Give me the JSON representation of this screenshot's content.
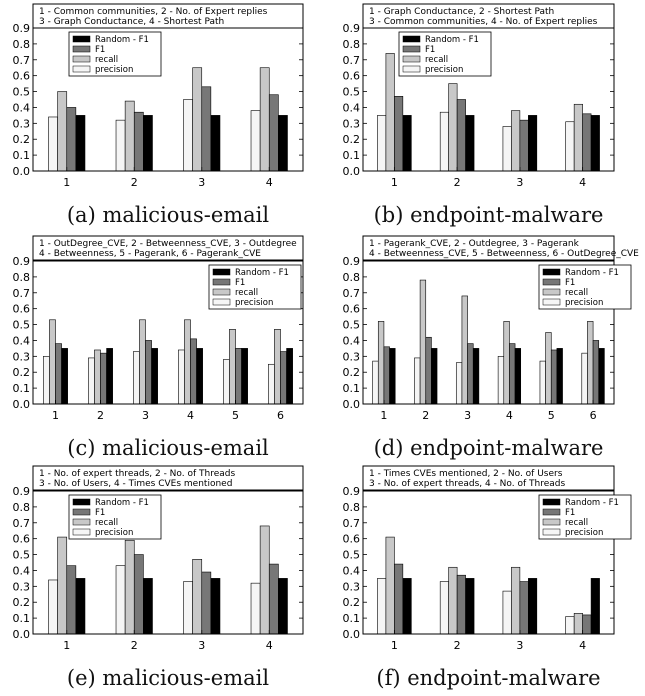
{
  "legend_labels": [
    "Random - F1",
    "F1",
    "recall",
    "precision"
  ],
  "colors": {
    "precision": "#f5f5f5",
    "recall": "#c8c8c8",
    "F1": "#777777",
    "random": "#000000"
  },
  "chart_data": [
    {
      "type": "bar",
      "caption": "(a) malicious-email",
      "annotation": [
        "1 - Common communities, 2 - No. of Expert replies",
        "3 - Graph Conductance, 4 - Shortest Path"
      ],
      "categories": [
        "1",
        "2",
        "3",
        "4"
      ],
      "ylim": [
        0,
        0.9
      ],
      "yticks": [
        "0.0",
        "0.1",
        "0.2",
        "0.3",
        "0.4",
        "0.5",
        "0.6",
        "0.7",
        "0.8",
        "0.9"
      ],
      "series": [
        {
          "name": "precision",
          "values": [
            0.34,
            0.32,
            0.45,
            0.38
          ]
        },
        {
          "name": "recall",
          "values": [
            0.5,
            0.44,
            0.65,
            0.65
          ]
        },
        {
          "name": "F1",
          "values": [
            0.4,
            0.37,
            0.53,
            0.48
          ]
        },
        {
          "name": "Random - F1",
          "values": [
            0.35,
            0.35,
            0.35,
            0.35
          ]
        }
      ]
    },
    {
      "type": "bar",
      "caption": "(b) endpoint-malware",
      "annotation": [
        "1 - Graph Conductance, 2 - Shortest Path",
        "3 - Common communities, 4 - No. of Expert replies"
      ],
      "categories": [
        "1",
        "2",
        "3",
        "4"
      ],
      "ylim": [
        0,
        0.9
      ],
      "yticks": [
        "0.0",
        "0.1",
        "0.2",
        "0.3",
        "0.4",
        "0.5",
        "0.6",
        "0.7",
        "0.8",
        "0.9"
      ],
      "series": [
        {
          "name": "precision",
          "values": [
            0.35,
            0.37,
            0.28,
            0.31
          ]
        },
        {
          "name": "recall",
          "values": [
            0.74,
            0.55,
            0.38,
            0.42
          ]
        },
        {
          "name": "F1",
          "values": [
            0.47,
            0.45,
            0.32,
            0.36
          ]
        },
        {
          "name": "Random - F1",
          "values": [
            0.35,
            0.35,
            0.35,
            0.35
          ]
        }
      ]
    },
    {
      "type": "bar",
      "caption": "(c) malicious-email",
      "annotation": [
        "1 - OutDegree_CVE, 2 - Betweenness_CVE, 3 - Outdegree",
        "4 - Betweenness, 5 - Pagerank, 6 - Pagerank_CVE"
      ],
      "categories": [
        "1",
        "2",
        "3",
        "4",
        "5",
        "6"
      ],
      "ylim": [
        0,
        0.9
      ],
      "yticks": [
        "0.0",
        "0.1",
        "0.2",
        "0.3",
        "0.4",
        "0.5",
        "0.6",
        "0.7",
        "0.8",
        "0.9"
      ],
      "series": [
        {
          "name": "precision",
          "values": [
            0.3,
            0.29,
            0.33,
            0.34,
            0.28,
            0.25
          ]
        },
        {
          "name": "recall",
          "values": [
            0.53,
            0.34,
            0.53,
            0.53,
            0.47,
            0.47
          ]
        },
        {
          "name": "F1",
          "values": [
            0.38,
            0.32,
            0.4,
            0.41,
            0.35,
            0.33
          ]
        },
        {
          "name": "Random - F1",
          "values": [
            0.35,
            0.35,
            0.35,
            0.35,
            0.35,
            0.35
          ]
        }
      ]
    },
    {
      "type": "bar",
      "caption": "(d) endpoint-malware",
      "annotation": [
        "1 - Pagerank_CVE, 2 - Outdegree, 3 - Pagerank",
        "4 - Betweenness_CVE, 5 - Betweenness, 6 - OutDegree_CVE"
      ],
      "categories": [
        "1",
        "2",
        "3",
        "4",
        "5",
        "6"
      ],
      "ylim": [
        0,
        0.9
      ],
      "yticks": [
        "0.0",
        "0.1",
        "0.2",
        "0.3",
        "0.4",
        "0.5",
        "0.6",
        "0.7",
        "0.8",
        "0.9"
      ],
      "series": [
        {
          "name": "precision",
          "values": [
            0.27,
            0.29,
            0.26,
            0.3,
            0.27,
            0.32
          ]
        },
        {
          "name": "recall",
          "values": [
            0.52,
            0.78,
            0.68,
            0.52,
            0.45,
            0.52
          ]
        },
        {
          "name": "F1",
          "values": [
            0.36,
            0.42,
            0.38,
            0.38,
            0.34,
            0.4
          ]
        },
        {
          "name": "Random - F1",
          "values": [
            0.35,
            0.35,
            0.35,
            0.35,
            0.35,
            0.35
          ]
        }
      ]
    },
    {
      "type": "bar",
      "caption": "(e) malicious-email",
      "annotation": [
        "1 - No. of expert threads, 2 - No. of Threads",
        "3 - No. of Users, 4 - Times CVEs mentioned"
      ],
      "categories": [
        "1",
        "2",
        "3",
        "4"
      ],
      "ylim": [
        0,
        0.9
      ],
      "yticks": [
        "0.0",
        "0.1",
        "0.2",
        "0.3",
        "0.4",
        "0.5",
        "0.6",
        "0.7",
        "0.8",
        "0.9"
      ],
      "series": [
        {
          "name": "precision",
          "values": [
            0.34,
            0.43,
            0.33,
            0.32
          ]
        },
        {
          "name": "recall",
          "values": [
            0.61,
            0.59,
            0.47,
            0.68
          ]
        },
        {
          "name": "F1",
          "values": [
            0.43,
            0.5,
            0.39,
            0.44
          ]
        },
        {
          "name": "Random - F1",
          "values": [
            0.35,
            0.35,
            0.35,
            0.35
          ]
        }
      ]
    },
    {
      "type": "bar",
      "caption": "(f) endpoint-malware",
      "annotation": [
        "1 - Times CVEs mentioned, 2 - No. of Users",
        "3 - No. of expert threads, 4 - No. of Threads"
      ],
      "categories": [
        "1",
        "2",
        "3",
        "4"
      ],
      "ylim": [
        0,
        0.9
      ],
      "yticks": [
        "0.0",
        "0.1",
        "0.2",
        "0.3",
        "0.4",
        "0.5",
        "0.6",
        "0.7",
        "0.8",
        "0.9"
      ],
      "series": [
        {
          "name": "precision",
          "values": [
            0.35,
            0.33,
            0.27,
            0.11
          ]
        },
        {
          "name": "recall",
          "values": [
            0.61,
            0.42,
            0.42,
            0.13
          ]
        },
        {
          "name": "F1",
          "values": [
            0.44,
            0.37,
            0.33,
            0.12
          ]
        },
        {
          "name": "Random - F1",
          "values": [
            0.35,
            0.35,
            0.35,
            0.35
          ]
        }
      ]
    }
  ]
}
